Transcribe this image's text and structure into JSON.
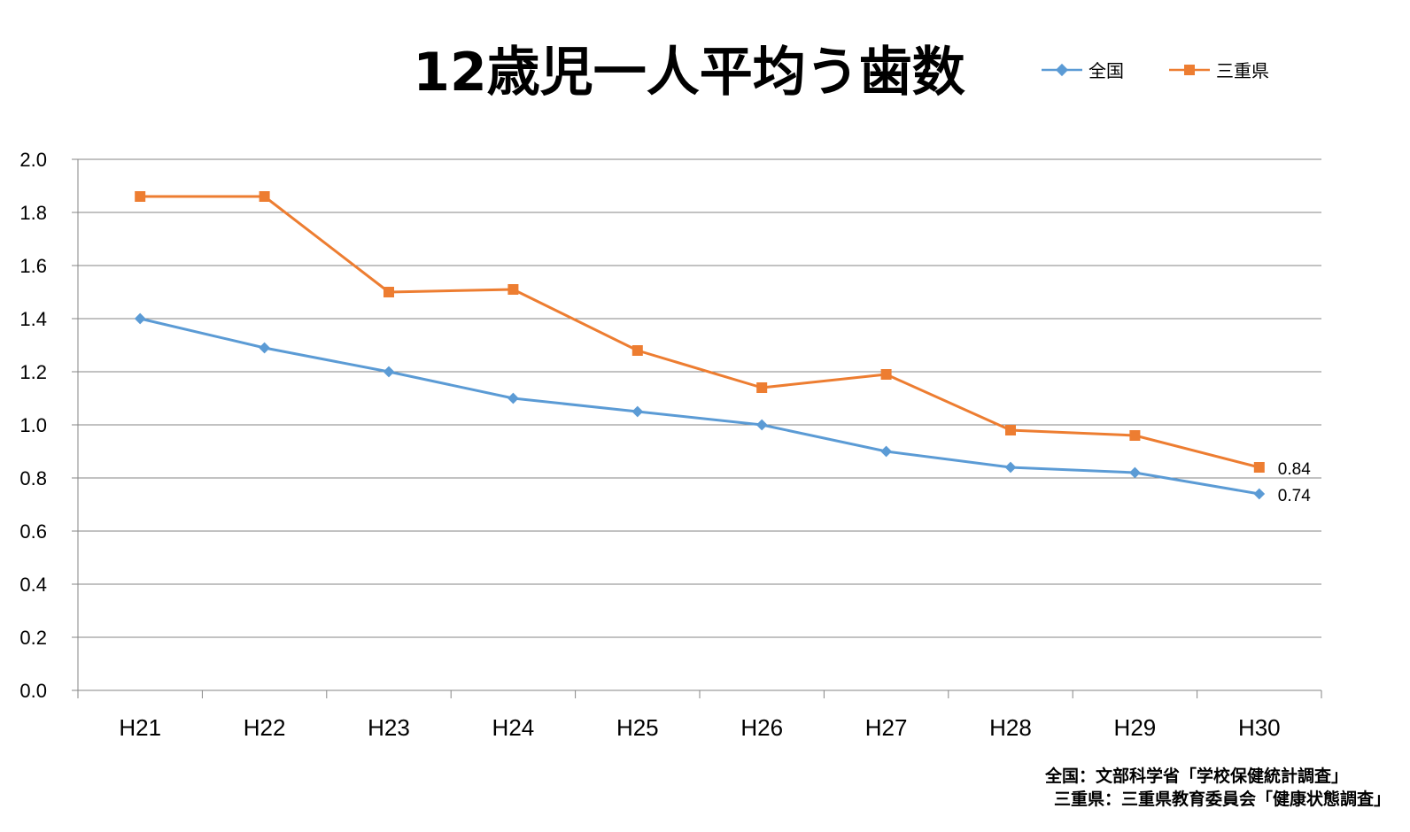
{
  "chart_data": {
    "type": "line",
    "title": "12歳児一人平均う歯数",
    "categories": [
      "H21",
      "H22",
      "H23",
      "H24",
      "H25",
      "H26",
      "H27",
      "H28",
      "H29",
      "H30"
    ],
    "series": [
      {
        "name": "全国",
        "color": "#5b9bd5",
        "marker": "diamond",
        "values": [
          1.4,
          1.29,
          1.2,
          1.1,
          1.05,
          1.0,
          0.9,
          0.84,
          0.82,
          0.74
        ],
        "data_labels": {
          "9": "0.74"
        }
      },
      {
        "name": "三重県",
        "color": "#ed7d31",
        "marker": "square",
        "values": [
          1.86,
          1.86,
          1.5,
          1.51,
          1.28,
          1.14,
          1.19,
          0.98,
          0.96,
          0.84
        ],
        "data_labels": {
          "9": "0.84"
        }
      }
    ],
    "y_ticks": [
      "0.0",
      "0.2",
      "0.4",
      "0.6",
      "0.8",
      "1.0",
      "1.2",
      "1.4",
      "1.6",
      "1.8",
      "2.0"
    ],
    "ylim": [
      0,
      2.0
    ],
    "grid": "horizontal",
    "legend_position": "top-right",
    "xlabel": "",
    "ylabel": ""
  },
  "sources": [
    "全国：文部科学省「学校保健統計調査」",
    "三重県：三重県教育委員会「健康状態調査」"
  ]
}
